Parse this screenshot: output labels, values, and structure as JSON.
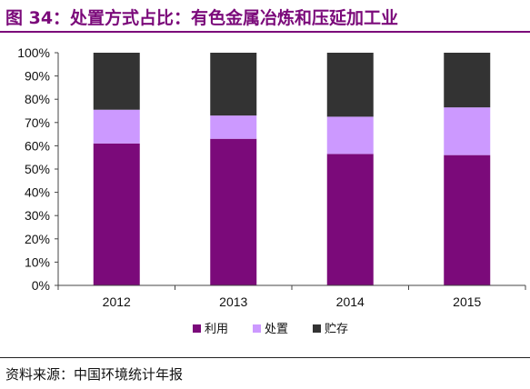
{
  "header": {
    "title": "图 34：处置方式占比：有色金属冶炼和压延加工业"
  },
  "footer": {
    "source": "资料来源：中国环境统计年报"
  },
  "chart_data": {
    "type": "bar",
    "stacked": true,
    "normalized": true,
    "categories": [
      "2012",
      "2013",
      "2014",
      "2015"
    ],
    "series": [
      {
        "name": "利用",
        "color": "#7b0a7a",
        "values": [
          61,
          63,
          56.5,
          56
        ]
      },
      {
        "name": "处置",
        "color": "#cc99ff",
        "values": [
          14.5,
          10,
          16,
          20.5
        ]
      },
      {
        "name": "贮存",
        "color": "#333333",
        "values": [
          24.5,
          27,
          27.5,
          23.5
        ]
      }
    ],
    "yticks": [
      "0%",
      "10%",
      "20%",
      "30%",
      "40%",
      "50%",
      "60%",
      "70%",
      "80%",
      "90%",
      "100%"
    ],
    "ylim": [
      0,
      100
    ],
    "legend_position": "bottom",
    "grid": false
  }
}
